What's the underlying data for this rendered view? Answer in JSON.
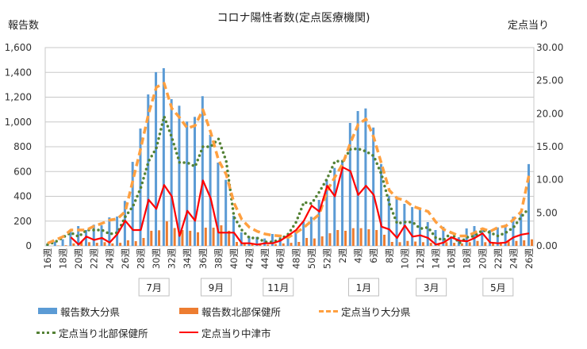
{
  "chart_data": {
    "type": "bar",
    "title": "コロナ陽性者数(定点医療機関)",
    "ylabel_left": "報告数",
    "ylabel_right": "定点当り",
    "ylim_left": [
      0,
      1600
    ],
    "ylim_right": [
      0,
      30
    ],
    "y_ticks_left": [
      "0",
      "200",
      "400",
      "600",
      "800",
      "1,000",
      "1,200",
      "1,400",
      "1,600"
    ],
    "y_ticks_right": [
      "0.00",
      "5.00",
      "10.00",
      "15.00",
      "20.00",
      "25.00",
      "30.00"
    ],
    "x_tick_labels": [
      "16週",
      "18週",
      "20週",
      "22週",
      "24週",
      "26週",
      "28週",
      "30週",
      "32週",
      "34週",
      "36週",
      "38週",
      "40週",
      "42週",
      "44週",
      "46週",
      "48週",
      "50週",
      "52週",
      "2週",
      "4週",
      "6週",
      "8週",
      "10週",
      "12週",
      "14週",
      "16週",
      "18週",
      "20週",
      "22週",
      "24週",
      "26週"
    ],
    "month_labels": [
      "7月",
      "9月",
      "11月",
      "1月",
      "3月",
      "5月"
    ],
    "grid": true,
    "legend_placement": "bottom",
    "colors": {
      "blue": "#5b9bd5",
      "orange": "#ed7d31",
      "dash": "#ffa040",
      "green": "#548235",
      "red": "#ff0000"
    },
    "series": [
      {
        "name": "報告数大分県",
        "kind": "bar",
        "axis": "left",
        "values": [
          10,
          32,
          53,
          128,
          160,
          128,
          171,
          166,
          230,
          237,
          363,
          678,
          947,
          1222,
          1402,
          1434,
          1184,
          1131,
          1003,
          1041,
          1208,
          896,
          672,
          533,
          243,
          109,
          77,
          73,
          60,
          96,
          80,
          64,
          128,
          192,
          235,
          371,
          533,
          629,
          693,
          992,
          1088,
          1109,
          955,
          661,
          405,
          390,
          339,
          313,
          309,
          192,
          128,
          154,
          77,
          70,
          141,
          160,
          128,
          128,
          149,
          171,
          235,
          277,
          660
        ]
      },
      {
        "name": "報告数北部保健所",
        "kind": "bar",
        "axis": "left",
        "values": [
          0,
          3,
          5,
          20,
          35,
          30,
          25,
          30,
          20,
          25,
          45,
          38,
          64,
          122,
          126,
          198,
          144,
          128,
          122,
          110,
          147,
          147,
          166,
          122,
          32,
          20,
          15,
          10,
          10,
          15,
          20,
          25,
          32,
          64,
          60,
          77,
          102,
          128,
          122,
          143,
          143,
          134,
          128,
          90,
          32,
          30,
          40,
          35,
          30,
          25,
          20,
          30,
          25,
          20,
          30,
          40,
          30,
          25,
          30,
          35,
          40,
          45,
          53
        ]
      },
      {
        "name": "定点当り大分県",
        "kind": "line-dashed",
        "axis": "right",
        "values": [
          0.4,
          0.9,
          1.4,
          2.4,
          2.4,
          2.4,
          3.0,
          3.4,
          3.9,
          4.1,
          5.2,
          10,
          14.8,
          20,
          24,
          24.6,
          20.8,
          19.4,
          17.8,
          18.2,
          20.6,
          17.2,
          13,
          10.8,
          6.5,
          4,
          2.8,
          2.2,
          1.8,
          1.6,
          1.5,
          1.3,
          2.0,
          2.8,
          3.8,
          4.8,
          8.4,
          10.4,
          12.4,
          15.6,
          18.4,
          19.2,
          16.4,
          12.4,
          8.4,
          7.2,
          6.9,
          6.0,
          5.6,
          5.2,
          3.6,
          2.5,
          2.0,
          1.5,
          1.5,
          2.0,
          2.6,
          2.2,
          2.8,
          3.0,
          4.0,
          5.2,
          10.8
        ]
      },
      {
        "name": "定点当り北部保健所",
        "kind": "line-dotted",
        "axis": "right",
        "values": [
          0.2,
          0.6,
          1.3,
          2.0,
          1.4,
          2.4,
          2.4,
          2.4,
          1.8,
          2.0,
          4.4,
          6.0,
          8.8,
          12.8,
          14.8,
          19.6,
          16.4,
          12.6,
          12.6,
          12,
          15,
          15,
          16.2,
          12.8,
          4.4,
          2.4,
          1.2,
          1.2,
          0.6,
          0.6,
          1.0,
          1.8,
          3.6,
          6.6,
          6.4,
          8.2,
          10.2,
          12.8,
          12.8,
          14.6,
          14.7,
          14.3,
          13.6,
          10.8,
          6.4,
          3.4,
          3.6,
          3.6,
          2.6,
          2.8,
          1.2,
          0.9,
          2.0,
          0.4,
          1.3,
          1.5,
          2.4,
          2.0,
          1.5,
          2.0,
          2.8,
          4.4,
          5.7
        ]
      },
      {
        "name": "定点当り中津市",
        "kind": "line",
        "axis": "right",
        "values": [
          null,
          null,
          null,
          1.3,
          0.2,
          1.4,
          0.9,
          1.2,
          0.5,
          1.8,
          3.8,
          2.4,
          2.4,
          7.0,
          5.6,
          9.2,
          7.5,
          1.5,
          5.3,
          3.8,
          9.9,
          7.2,
          2.0,
          2.0,
          2.0,
          0.4,
          0.4,
          0.2,
          0.4,
          0.4,
          0.8,
          1.6,
          2.4,
          3.8,
          6.1,
          5.2,
          9.1,
          7.5,
          11.9,
          11.3,
          7.7,
          9.1,
          7.7,
          2.9,
          2.5,
          1.2,
          3.1,
          1.4,
          1.6,
          1.2,
          0.2,
          0.5,
          1.3,
          0.8,
          0.7,
          1.2,
          1.9,
          0.5,
          0.4,
          0.5,
          1.3,
          1.7,
          1.9
        ]
      }
    ]
  }
}
